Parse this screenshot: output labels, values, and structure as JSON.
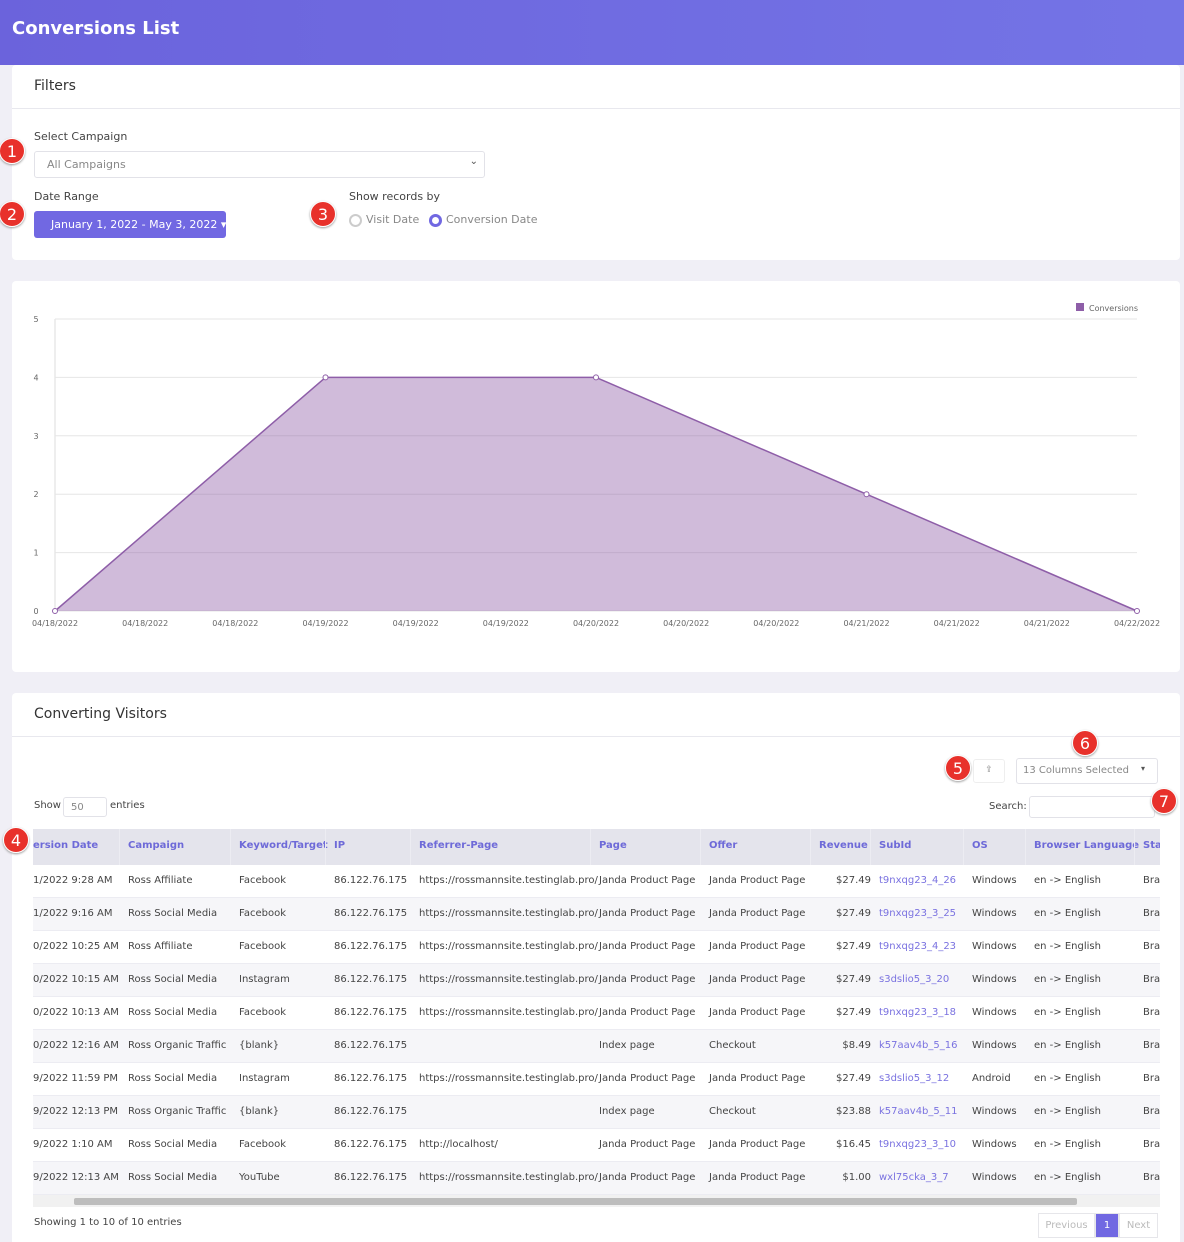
{
  "header": {
    "title": "Conversions List"
  },
  "filters": {
    "title": "Filters",
    "campaign_label": "Select Campaign",
    "campaign_value": "All Campaigns",
    "date_label": "Date Range",
    "date_value": "January 1, 2022 - May 3, 2022",
    "show_by_label": "Show records by",
    "options": [
      {
        "label": "Visit Date",
        "checked": false
      },
      {
        "label": "Conversion Date",
        "checked": true
      }
    ]
  },
  "annotations": [
    "1",
    "2",
    "3",
    "4",
    "5",
    "6",
    "7"
  ],
  "chart_data": {
    "type": "area",
    "categories": [
      "04/18/2022",
      "04/18/2022",
      "04/18/2022",
      "04/19/2022",
      "04/19/2022",
      "04/19/2022",
      "04/20/2022",
      "04/20/2022",
      "04/20/2022",
      "04/21/2022",
      "04/21/2022",
      "04/21/2022",
      "04/22/2022"
    ],
    "series": [
      {
        "name": "Conversions",
        "color": "#8e5ea8",
        "values": [
          0,
          null,
          null,
          4,
          null,
          null,
          4,
          null,
          null,
          2,
          null,
          null,
          0
        ]
      }
    ],
    "ylim": [
      0,
      5
    ],
    "yticks": [
      0,
      1,
      2,
      3,
      4,
      5
    ],
    "grid": true,
    "legend": "top-right"
  },
  "table": {
    "title": "Converting Visitors",
    "columns_selected": "13 Columns Selected",
    "show": "Show",
    "entries_value": "50",
    "entries": "entries",
    "search_label": "Search:",
    "columns": [
      "ersion Date",
      "Campaign",
      "Keyword/Target",
      "IP",
      "Referrer-Page",
      "Page",
      "Offer",
      "Revenue",
      "SubId",
      "OS",
      "Browser Language",
      "Sta"
    ],
    "rows": [
      [
        "1/2022 9:28 AM",
        "Ross Affiliate",
        "Facebook",
        "86.122.76.175",
        "https://rossmannsite.testinglab.pro/",
        "Janda Product Page",
        "Janda Product Page",
        "$27.49",
        "t9nxqg23_4_26",
        "Windows",
        "en -> English",
        "Bra"
      ],
      [
        "1/2022 9:16 AM",
        "Ross Social Media",
        "Facebook",
        "86.122.76.175",
        "https://rossmannsite.testinglab.pro/",
        "Janda Product Page",
        "Janda Product Page",
        "$27.49",
        "t9nxqg23_3_25",
        "Windows",
        "en -> English",
        "Bra"
      ],
      [
        "0/2022 10:25 AM",
        "Ross Affiliate",
        "Facebook",
        "86.122.76.175",
        "https://rossmannsite.testinglab.pro/",
        "Janda Product Page",
        "Janda Product Page",
        "$27.49",
        "t9nxqg23_4_23",
        "Windows",
        "en -> English",
        "Bra"
      ],
      [
        "0/2022 10:15 AM",
        "Ross Social Media",
        "Instagram",
        "86.122.76.175",
        "https://rossmannsite.testinglab.pro/",
        "Janda Product Page",
        "Janda Product Page",
        "$27.49",
        "s3dslio5_3_20",
        "Windows",
        "en -> English",
        "Bra"
      ],
      [
        "0/2022 10:13 AM",
        "Ross Social Media",
        "Facebook",
        "86.122.76.175",
        "https://rossmannsite.testinglab.pro/",
        "Janda Product Page",
        "Janda Product Page",
        "$27.49",
        "t9nxqg23_3_18",
        "Windows",
        "en -> English",
        "Bra"
      ],
      [
        "0/2022 12:16 AM",
        "Ross Organic Traffic",
        "{blank}",
        "86.122.76.175",
        null,
        "Index page",
        "Checkout",
        "$8.49",
        "k57aav4b_5_16",
        "Windows",
        "en -> English",
        "Bra"
      ],
      [
        "9/2022 11:59 PM",
        "Ross Social Media",
        "Instagram",
        "86.122.76.175",
        "https://rossmannsite.testinglab.pro/",
        "Janda Product Page",
        "Janda Product Page",
        "$27.49",
        "s3dslio5_3_12",
        "Android",
        "en -> English",
        "Bra"
      ],
      [
        "9/2022 12:13 PM",
        "Ross Organic Traffic",
        "{blank}",
        "86.122.76.175",
        null,
        "Index page",
        "Checkout",
        "$23.88",
        "k57aav4b_5_11",
        "Windows",
        "en -> English",
        "Bra"
      ],
      [
        "9/2022 1:10 AM",
        "Ross Social Media",
        "Facebook",
        "86.122.76.175",
        "http://localhost/",
        "Janda Product Page",
        "Janda Product Page",
        "$16.45",
        "t9nxqg23_3_10",
        "Windows",
        "en -> English",
        "Bra"
      ],
      [
        "9/2022 12:13 AM",
        "Ross Social Media",
        "YouTube",
        "86.122.76.175",
        "https://rossmannsite.testinglab.pro/",
        "Janda Product Page",
        "Janda Product Page",
        "$1.00",
        "wxl75cka_3_7",
        "Windows",
        "en -> English",
        "Bra"
      ]
    ],
    "info": "Showing 1 to 10 of 10 entries",
    "pagination": [
      "Previous",
      "1",
      "Next"
    ]
  }
}
